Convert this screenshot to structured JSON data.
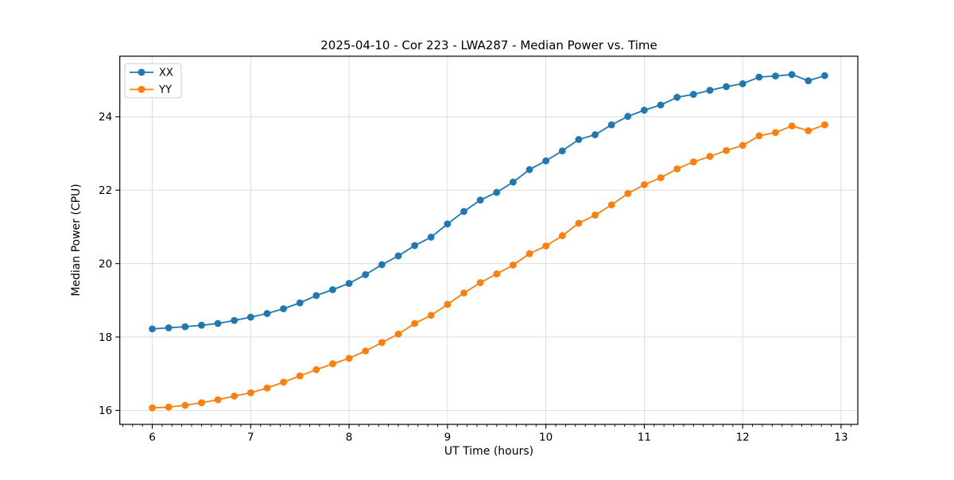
{
  "chart_data": {
    "type": "line",
    "title": "2025-04-10 - Cor 223 - LWA287 - Median Power vs. Time",
    "xlabel": "UT Time (hours)",
    "ylabel": "Median Power (CPU)",
    "xlim": [
      5.67,
      13.17
    ],
    "ylim": [
      15.62,
      25.65
    ],
    "x_major_ticks": [
      6,
      7,
      8,
      9,
      10,
      11,
      12,
      13
    ],
    "x_minor_step": 0.1,
    "y_major_ticks": [
      16,
      18,
      20,
      22,
      24
    ],
    "grid": "major",
    "grid_color": "#d9d9d9",
    "legend_position": "upper-left",
    "x": [
      6.0,
      6.1667,
      6.3333,
      6.5,
      6.6667,
      6.8333,
      7.0,
      7.1667,
      7.3333,
      7.5,
      7.6667,
      7.8333,
      8.0,
      8.1667,
      8.3333,
      8.5,
      8.6667,
      8.8333,
      9.0,
      9.1667,
      9.3333,
      9.5,
      9.6667,
      9.8333,
      10.0,
      10.1667,
      10.3333,
      10.5,
      10.6667,
      10.8333,
      11.0,
      11.1667,
      11.3333,
      11.5,
      11.6667,
      11.8333,
      12.0,
      12.1667,
      12.3333,
      12.5,
      12.6667,
      12.8333
    ],
    "series": [
      {
        "name": "XX",
        "color": "#1f77b4",
        "values": [
          18.22,
          18.25,
          18.28,
          18.32,
          18.37,
          18.45,
          18.54,
          18.64,
          18.77,
          18.93,
          19.13,
          19.29,
          19.46,
          19.7,
          19.97,
          20.21,
          20.49,
          20.72,
          21.08,
          21.42,
          21.73,
          21.94,
          22.22,
          22.56,
          22.8,
          23.07,
          23.38,
          23.51,
          23.78,
          24.01,
          24.18,
          24.32,
          24.53,
          24.61,
          24.72,
          24.82,
          24.9,
          25.08,
          25.11,
          25.15,
          24.98,
          25.12
        ]
      },
      {
        "name": "YY",
        "color": "#ff7f0e",
        "values": [
          16.07,
          16.09,
          16.14,
          16.21,
          16.29,
          16.39,
          16.48,
          16.61,
          16.77,
          16.94,
          17.11,
          17.27,
          17.42,
          17.62,
          17.85,
          18.08,
          18.37,
          18.59,
          18.89,
          19.2,
          19.48,
          19.72,
          19.96,
          20.27,
          20.48,
          20.76,
          21.1,
          21.32,
          21.6,
          21.91,
          22.15,
          22.34,
          22.58,
          22.77,
          22.92,
          23.08,
          23.22,
          23.48,
          23.57,
          23.75,
          23.62,
          23.78
        ]
      }
    ]
  }
}
